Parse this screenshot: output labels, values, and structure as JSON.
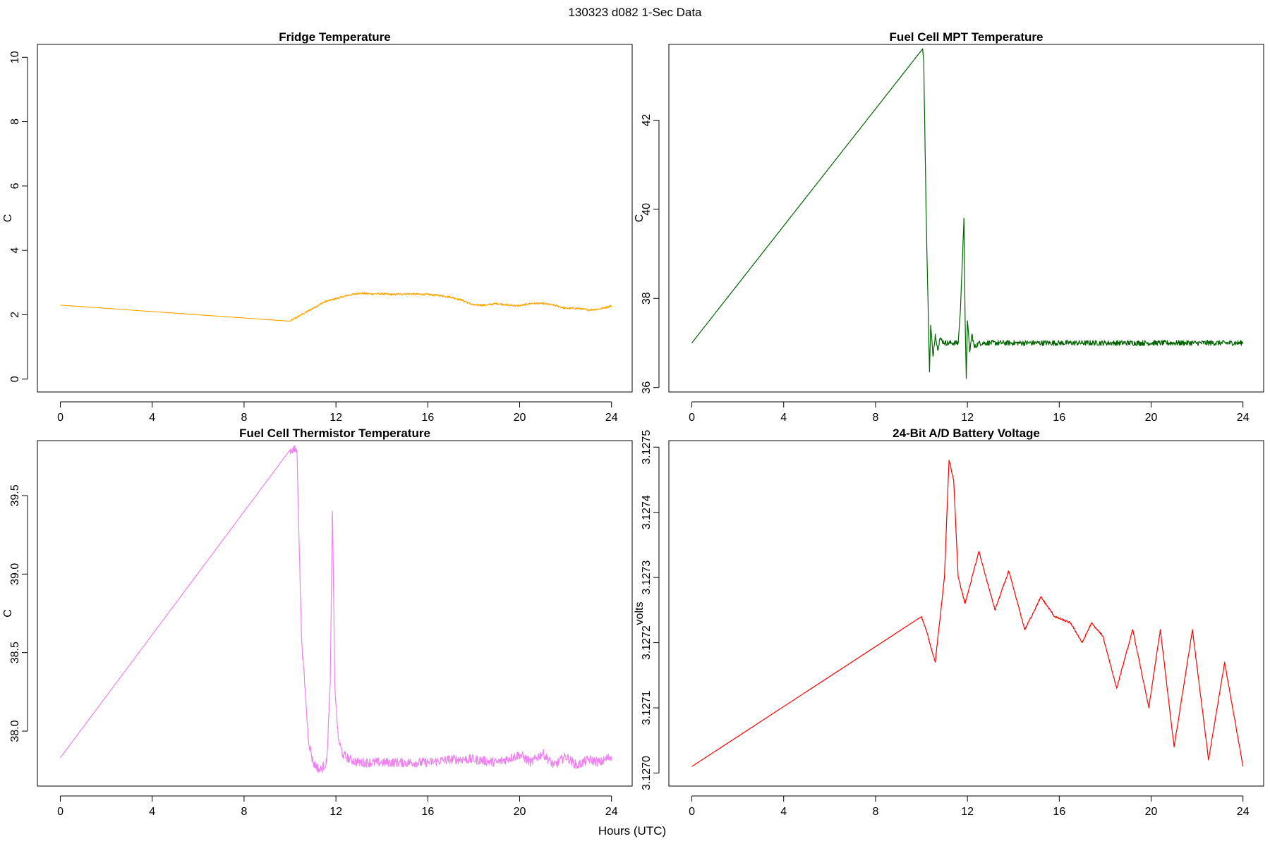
{
  "figure": {
    "suptitle": "130323   d082   1-Sec Data",
    "xlabel": "Hours (UTC)"
  },
  "chart_data": [
    {
      "type": "line",
      "title": "Fridge Temperature",
      "xlabel": "",
      "ylabel": "C",
      "color": "#FFA500",
      "xlim": [
        -1,
        24.9
      ],
      "ylim": [
        -0.4,
        10.4
      ],
      "xticks": [
        0,
        4,
        8,
        12,
        16,
        20,
        24
      ],
      "xtick_labels": [
        "0",
        "4",
        "8",
        "12",
        "16",
        "20",
        "24"
      ],
      "yticks": [
        0,
        2,
        4,
        6,
        8,
        10
      ],
      "ytick_labels": [
        "0",
        "2",
        "4",
        "6",
        "8",
        "10"
      ],
      "noise": 0.03,
      "series": [
        {
          "name": "Fridge Temperature",
          "x": [
            0,
            10,
            10.5,
            11,
            11.5,
            12,
            12.5,
            13,
            13.5,
            14,
            14.5,
            15,
            15.5,
            16,
            16.5,
            17,
            17.5,
            18,
            18.5,
            19,
            19.5,
            20,
            20.5,
            21,
            21.5,
            22,
            22.5,
            23,
            23.5,
            24
          ],
          "y": [
            2.3,
            1.8,
            2.0,
            2.2,
            2.4,
            2.5,
            2.6,
            2.67,
            2.65,
            2.65,
            2.63,
            2.65,
            2.64,
            2.63,
            2.6,
            2.55,
            2.45,
            2.3,
            2.3,
            2.35,
            2.3,
            2.28,
            2.35,
            2.35,
            2.3,
            2.2,
            2.2,
            2.15,
            2.18,
            2.28
          ]
        }
      ]
    },
    {
      "type": "line",
      "title": "Fuel Cell MPT Temperature",
      "xlabel": "",
      "ylabel": "C",
      "color": "#006400",
      "xlim": [
        -1,
        24.9
      ],
      "ylim": [
        35.9,
        43.7
      ],
      "xticks": [
        0,
        4,
        8,
        12,
        16,
        20,
        24
      ],
      "xtick_labels": [
        "0",
        "4",
        "8",
        "12",
        "16",
        "20",
        "24"
      ],
      "yticks": [
        36,
        38,
        40,
        42
      ],
      "ytick_labels": [
        "36",
        "38",
        "40",
        "42"
      ],
      "noise": 0.06,
      "series": [
        {
          "name": "Fuel Cell MPT Temperature",
          "x": [
            0,
            10.05,
            10.1,
            10.2,
            10.3,
            10.35,
            10.4,
            10.5,
            10.6,
            10.7,
            10.8,
            11,
            11.3,
            11.6,
            11.7,
            11.85,
            11.9,
            11.95,
            12.0,
            12.1,
            12.2,
            12.3,
            12.5,
            13,
            14,
            16,
            18,
            20,
            22,
            24
          ],
          "y": [
            37.0,
            43.6,
            43.3,
            40.0,
            37.5,
            36.35,
            37.4,
            36.7,
            37.2,
            36.85,
            37.1,
            37.0,
            37.0,
            37.0,
            37.8,
            39.8,
            37.5,
            36.2,
            37.5,
            36.8,
            37.2,
            36.9,
            37.0,
            37.0,
            37.0,
            37.0,
            37.0,
            37.0,
            37.0,
            37.0
          ]
        }
      ]
    },
    {
      "type": "line",
      "title": "Fuel Cell Thermistor Temperature",
      "xlabel": "",
      "ylabel": "C",
      "color": "#EE82EE",
      "xlim": [
        -1,
        24.9
      ],
      "ylim": [
        37.65,
        39.85
      ],
      "xticks": [
        0,
        4,
        8,
        12,
        16,
        20,
        24
      ],
      "xtick_labels": [
        "0",
        "4",
        "8",
        "12",
        "16",
        "20",
        "24"
      ],
      "yticks": [
        38.0,
        38.5,
        39.0,
        39.5
      ],
      "ytick_labels": [
        "38.0",
        "38.5",
        "39.0",
        "39.5"
      ],
      "noise": 0.03,
      "series": [
        {
          "name": "Fuel Cell Thermistor Temperature",
          "x": [
            0,
            10.0,
            10.3,
            10.5,
            10.8,
            11,
            11.3,
            11.6,
            11.75,
            11.85,
            11.95,
            12.1,
            12.3,
            12.6,
            13,
            14,
            15,
            16,
            17,
            18,
            19,
            20,
            20.5,
            21,
            21.5,
            22,
            22.5,
            23,
            23.5,
            24
          ],
          "y": [
            37.83,
            39.79,
            39.79,
            38.6,
            37.95,
            37.8,
            37.75,
            37.8,
            38.3,
            39.4,
            38.3,
            37.95,
            37.85,
            37.82,
            37.8,
            37.8,
            37.8,
            37.8,
            37.82,
            37.82,
            37.8,
            37.85,
            37.8,
            37.86,
            37.78,
            37.84,
            37.78,
            37.82,
            37.8,
            37.84
          ]
        }
      ]
    },
    {
      "type": "line",
      "title": "24-Bit A/D Battery Voltage",
      "xlabel": "",
      "ylabel": "volts",
      "color": "#FF0000",
      "xlim": [
        -1,
        24.9
      ],
      "ylim": [
        3.12698,
        3.12751
      ],
      "xticks": [
        0,
        4,
        8,
        12,
        16,
        20,
        24
      ],
      "xtick_labels": [
        "0",
        "4",
        "8",
        "12",
        "16",
        "20",
        "24"
      ],
      "yticks": [
        3.127,
        3.1271,
        3.1272,
        3.1273,
        3.1274,
        3.1275
      ],
      "ytick_labels": [
        "3.1270",
        "3.1271",
        "3.1272",
        "3.1273",
        "3.1274",
        "3.1275"
      ],
      "noise": 1.5e-06,
      "series": [
        {
          "name": "24-Bit A/D Battery Voltage",
          "x": [
            0,
            10.0,
            10.2,
            10.6,
            11.0,
            11.2,
            11.4,
            11.6,
            11.9,
            12.5,
            13.2,
            13.8,
            14.5,
            15.2,
            15.8,
            16.5,
            17.0,
            17.4,
            17.9,
            18.5,
            19.2,
            19.9,
            20.4,
            21.0,
            21.8,
            22.5,
            23.2,
            24.0
          ],
          "y": [
            3.12701,
            3.12724,
            3.12722,
            3.12717,
            3.1273,
            3.12748,
            3.12745,
            3.1273,
            3.12726,
            3.12734,
            3.12725,
            3.12731,
            3.12722,
            3.12727,
            3.12724,
            3.12723,
            3.1272,
            3.12723,
            3.12721,
            3.12713,
            3.12722,
            3.1271,
            3.12722,
            3.12704,
            3.12722,
            3.12702,
            3.12717,
            3.12701
          ]
        }
      ]
    }
  ]
}
